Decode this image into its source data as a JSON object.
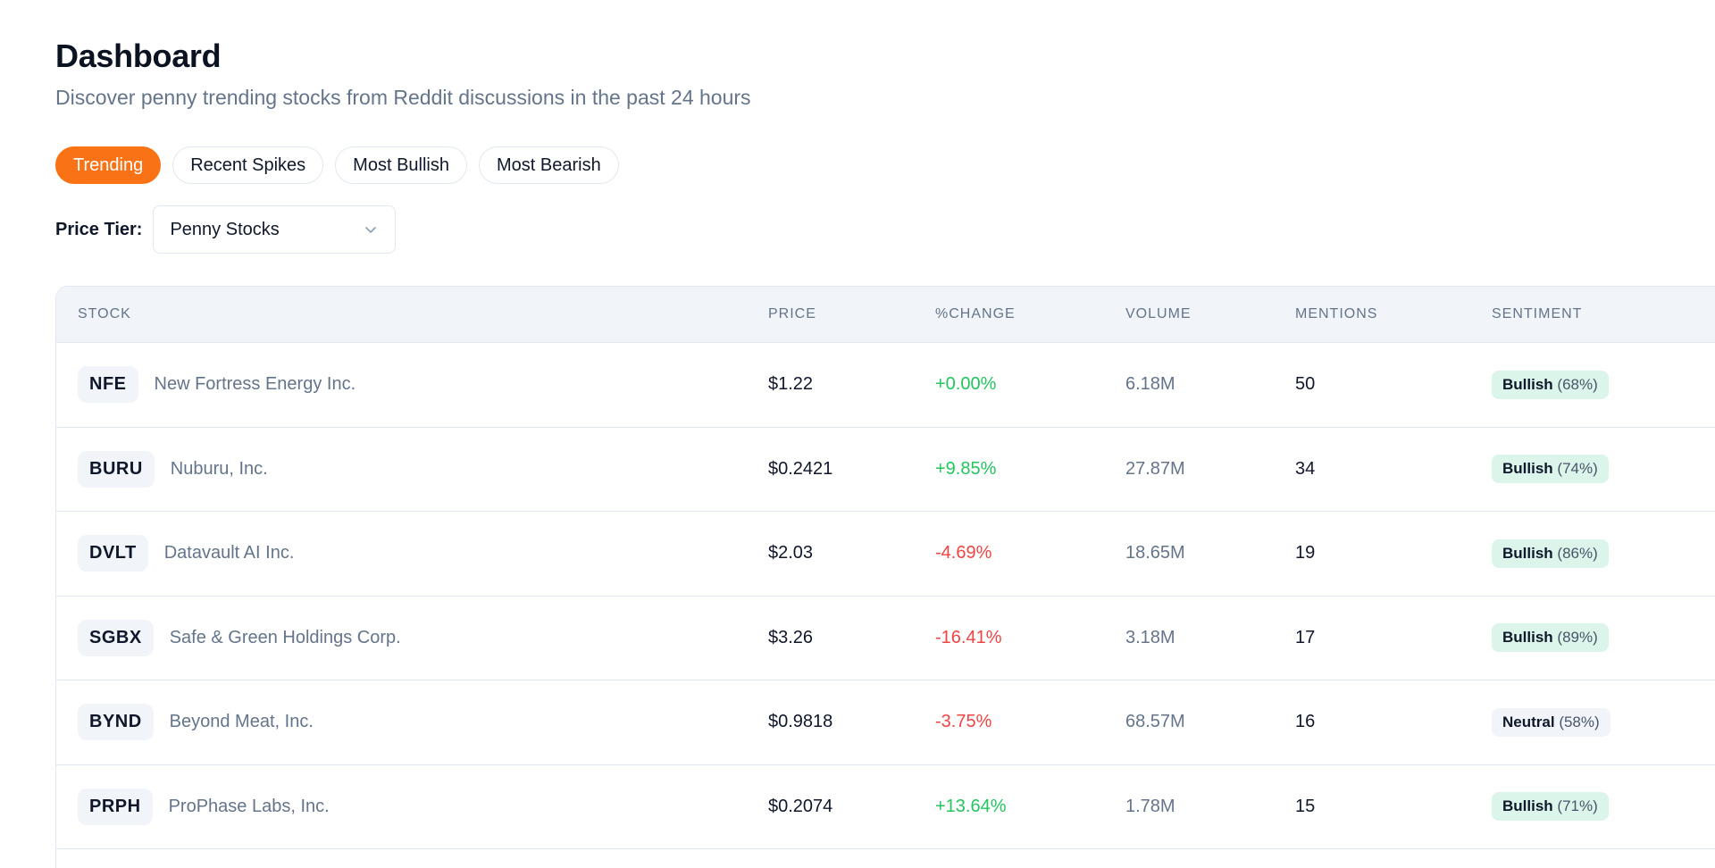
{
  "header": {
    "title": "Dashboard",
    "subtitle": "Discover penny trending stocks from Reddit discussions in the past 24 hours"
  },
  "tabs": [
    {
      "label": "Trending",
      "active": true
    },
    {
      "label": "Recent Spikes",
      "active": false
    },
    {
      "label": "Most Bullish",
      "active": false
    },
    {
      "label": "Most Bearish",
      "active": false
    }
  ],
  "filter": {
    "label": "Price Tier:",
    "selected": "Penny Stocks"
  },
  "table": {
    "columns": [
      "STOCK",
      "PRICE",
      "%CHANGE",
      "VOLUME",
      "MENTIONS",
      "SENTIMENT"
    ],
    "rows": [
      {
        "ticker": "NFE",
        "company": "New Fortress Energy Inc.",
        "price": "$1.22",
        "change": "+0.00%",
        "direction": "up",
        "volume": "6.18M",
        "mentions": "50",
        "sentiment": "Bullish",
        "sentiment_pct": "(68%)"
      },
      {
        "ticker": "BURU",
        "company": "Nuburu, Inc.",
        "price": "$0.2421",
        "change": "+9.85%",
        "direction": "up",
        "volume": "27.87M",
        "mentions": "34",
        "sentiment": "Bullish",
        "sentiment_pct": "(74%)"
      },
      {
        "ticker": "DVLT",
        "company": "Datavault AI Inc.",
        "price": "$2.03",
        "change": "-4.69%",
        "direction": "down",
        "volume": "18.65M",
        "mentions": "19",
        "sentiment": "Bullish",
        "sentiment_pct": "(86%)"
      },
      {
        "ticker": "SGBX",
        "company": "Safe & Green Holdings Corp.",
        "price": "$3.26",
        "change": "-16.41%",
        "direction": "down",
        "volume": "3.18M",
        "mentions": "17",
        "sentiment": "Bullish",
        "sentiment_pct": "(89%)"
      },
      {
        "ticker": "BYND",
        "company": "Beyond Meat, Inc.",
        "price": "$0.9818",
        "change": "-3.75%",
        "direction": "down",
        "volume": "68.57M",
        "mentions": "16",
        "sentiment": "Neutral",
        "sentiment_pct": "(58%)"
      },
      {
        "ticker": "PRPH",
        "company": "ProPhase Labs, Inc.",
        "price": "$0.2074",
        "change": "+13.64%",
        "direction": "up",
        "volume": "1.78M",
        "mentions": "15",
        "sentiment": "Bullish",
        "sentiment_pct": "(71%)"
      }
    ]
  },
  "colors": {
    "accent": "#f97316",
    "positive": "#22c55e",
    "negative": "#ef4444",
    "bullish_bg": "#dcf5ea",
    "neutral_bg": "#f1f5f9"
  }
}
